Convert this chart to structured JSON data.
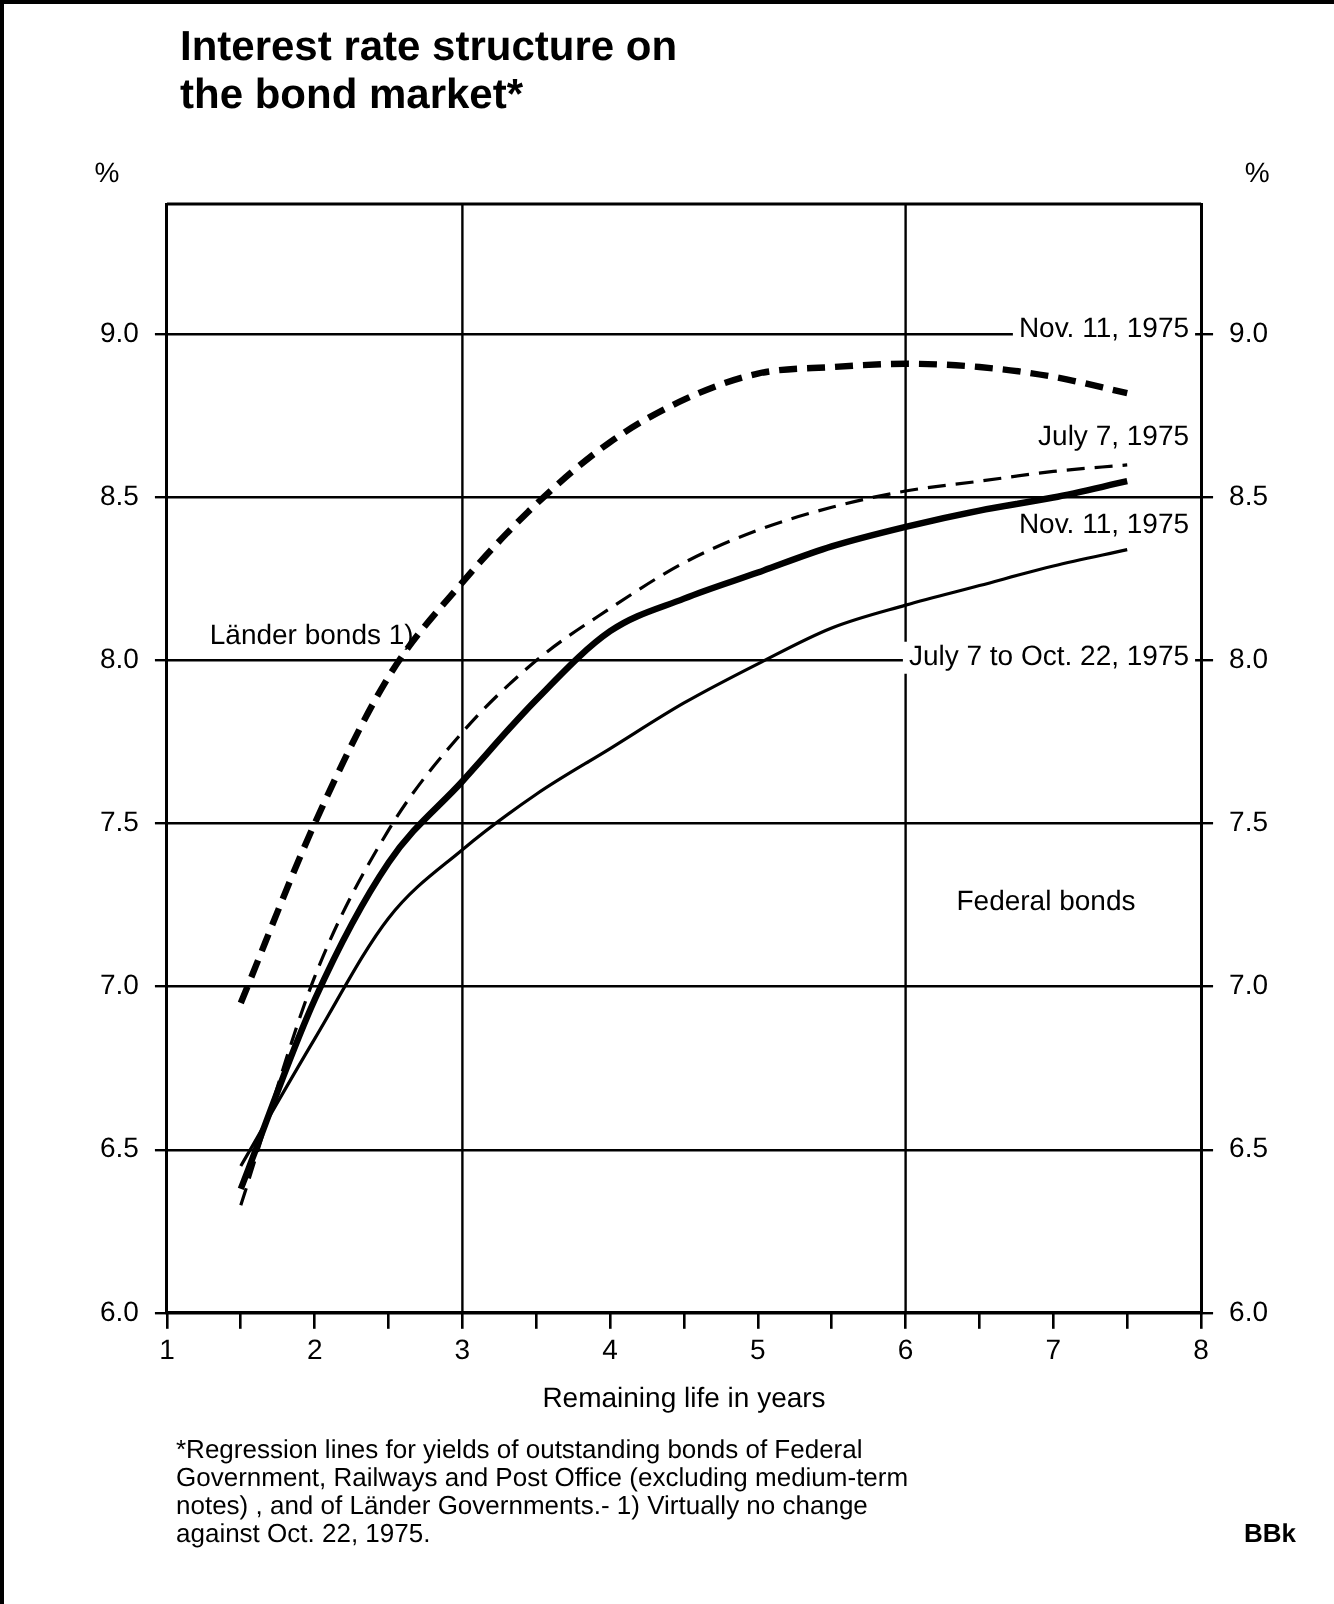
{
  "chart_data": {
    "type": "line",
    "title": "Interest rate structure on the bond market*",
    "xlabel": "Remaining life in years",
    "ylabel": "%",
    "y2label": "%",
    "x": [
      1.5,
      2,
      2.5,
      3,
      3.5,
      4,
      4.5,
      5,
      5.5,
      6,
      6.5,
      7,
      7.5
    ],
    "xlim": [
      1,
      8
    ],
    "xticks": [
      1,
      {
        "value": 1.5,
        "label": null
      },
      2,
      {
        "value": 2.5,
        "label": null
      },
      3,
      {
        "value": 3.5,
        "label": null
      },
      4,
      {
        "value": 4.5,
        "label": null
      },
      5,
      {
        "value": 5.5,
        "label": null
      },
      6,
      {
        "value": 6.5,
        "label": null
      },
      7,
      {
        "value": 7.5,
        "label": null
      },
      8
    ],
    "ylim": [
      6,
      9.4
    ],
    "yticks": [
      {
        "value": 6,
        "label": "6.0"
      },
      {
        "value": 6.5,
        "label": "6.5"
      },
      {
        "value": 7,
        "label": "7.0"
      },
      {
        "value": 7.5,
        "label": "7.5"
      },
      {
        "value": 8,
        "label": "8.0"
      },
      {
        "value": 8.5,
        "label": "8.5"
      },
      {
        "value": 9,
        "label": "9.0"
      }
    ],
    "y2lim": [
      6,
      9.4
    ],
    "y2ticks": [
      {
        "value": 6,
        "label": "6.0"
      },
      {
        "value": 6.5,
        "label": "6.5"
      },
      {
        "value": 7,
        "label": "7.0"
      },
      {
        "value": 7.5,
        "label": "7.5"
      },
      {
        "value": 8,
        "label": "8.0"
      },
      {
        "value": 8.5,
        "label": "8.5"
      },
      {
        "value": 9,
        "label": "9.0"
      }
    ],
    "grid": "y",
    "legend": false,
    "ref_lines": [
      {
        "axis": "x",
        "value": 3
      },
      {
        "axis": "x",
        "value": 6
      }
    ],
    "series": [
      {
        "name": "Nov. 11, 1975",
        "color": "#000000",
        "line_style": "dashed",
        "values": [
          6.95,
          7.5,
          7.95,
          8.24,
          8.48,
          8.67,
          8.8,
          8.88,
          8.9,
          8.91,
          8.9,
          8.87,
          8.82
        ]
      },
      {
        "name": "July 7, 1975",
        "color": "#000000",
        "line_style": "dashed",
        "values": [
          6.33,
          7.03,
          7.48,
          7.78,
          8.0,
          8.16,
          8.3,
          8.4,
          8.47,
          8.52,
          8.55,
          8.58,
          8.6
        ]
      },
      {
        "name": "Nov. 11, 1975",
        "color": "#000000",
        "line_style": "solid",
        "values": [
          6.38,
          6.96,
          7.38,
          7.63,
          7.88,
          8.09,
          8.19,
          8.27,
          8.35,
          8.41,
          8.46,
          8.5,
          8.55
        ]
      },
      {
        "name": "July 7 to Oct. 22, 1975",
        "color": "#000000",
        "line_style": "solid",
        "values": [
          6.45,
          6.84,
          7.21,
          7.42,
          7.59,
          7.73,
          7.87,
          7.99,
          8.1,
          8.17,
          8.23,
          8.29,
          8.34
        ]
      }
    ],
    "annotations": [
      "Länder bonds 1)",
      "Federal bonds",
      "*Regression lines for yields of outstanding bonds of Federal Government, Railways and Post Office (excluding medium-term notes) , and of Länder Governments.- 1) Virtually no change against Oct. 22, 1975.",
      "BBk"
    ]
  }
}
